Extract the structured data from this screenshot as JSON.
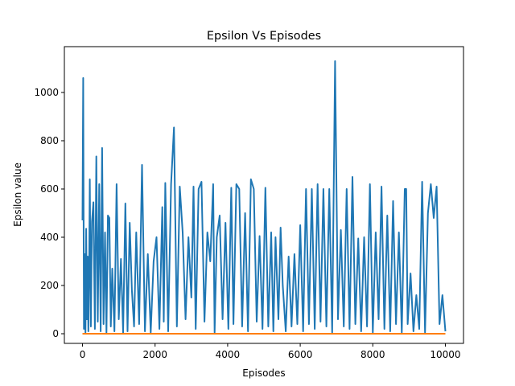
{
  "chart_data": {
    "type": "line",
    "title": "Epsilon Vs Episodes",
    "xlabel": "Episodes",
    "ylabel": "Epsilon value",
    "xlim": [
      -500,
      10500
    ],
    "ylim": [
      -40,
      1190
    ],
    "xticks": [
      0,
      2000,
      4000,
      6000,
      8000,
      10000
    ],
    "yticks": [
      0,
      200,
      400,
      600,
      800,
      1000
    ],
    "xtick_labels": [
      "0",
      "2000",
      "4000",
      "6000",
      "8000",
      "10000"
    ],
    "ytick_labels": [
      "0",
      "200",
      "400",
      "600",
      "800",
      "1000"
    ],
    "grid": false,
    "series": [
      {
        "color": "#1f77b4",
        "x": [
          0,
          20,
          40,
          60,
          80,
          100,
          120,
          140,
          160,
          180,
          200,
          230,
          260,
          300,
          340,
          380,
          420,
          460,
          500,
          540,
          580,
          620,
          660,
          700,
          740,
          780,
          820,
          880,
          940,
          1000,
          1060,
          1120,
          1180,
          1240,
          1300,
          1360,
          1420,
          1480,
          1560,
          1640,
          1720,
          1800,
          1880,
          1960,
          2040,
          2120,
          2200,
          2240,
          2280,
          2360,
          2440,
          2520,
          2600,
          2680,
          2760,
          2840,
          2920,
          3000,
          3060,
          3120,
          3200,
          3280,
          3360,
          3440,
          3520,
          3600,
          3640,
          3700,
          3780,
          3860,
          3940,
          4020,
          4100,
          4160,
          4240,
          4320,
          4400,
          4480,
          4560,
          4640,
          4720,
          4800,
          4880,
          4960,
          5040,
          5120,
          5200,
          5260,
          5320,
          5400,
          5460,
          5520,
          5600,
          5680,
          5760,
          5840,
          5920,
          6000,
          6080,
          6160,
          6240,
          6320,
          6400,
          6480,
          6560,
          6640,
          6720,
          6800,
          6880,
          6960,
          7040,
          7120,
          7200,
          7280,
          7360,
          7440,
          7520,
          7600,
          7680,
          7760,
          7840,
          7920,
          8000,
          8080,
          8160,
          8240,
          8320,
          8400,
          8480,
          8560,
          8640,
          8720,
          8800,
          8880,
          8920,
          8960,
          9040,
          9120,
          9200,
          9280,
          9360,
          9440,
          9520,
          9600,
          9680,
          9760,
          9840,
          9920,
          10000
        ],
        "y": [
          470,
          1060,
          20,
          330,
          5,
          435,
          60,
          320,
          10,
          230,
          640,
          30,
          465,
          545,
          20,
          735,
          50,
          620,
          10,
          770,
          40,
          420,
          5,
          490,
          480,
          30,
          270,
          10,
          620,
          60,
          310,
          5,
          540,
          10,
          460,
          180,
          30,
          420,
          40,
          700,
          10,
          330,
          5,
          300,
          400,
          20,
          525,
          50,
          625,
          10,
          620,
          855,
          30,
          610,
          420,
          60,
          400,
          150,
          610,
          20,
          600,
          630,
          50,
          420,
          300,
          620,
          5,
          400,
          490,
          60,
          460,
          20,
          605,
          40,
          620,
          600,
          30,
          500,
          10,
          640,
          600,
          50,
          405,
          20,
          605,
          30,
          420,
          10,
          400,
          60,
          440,
          200,
          10,
          320,
          30,
          330,
          40,
          450,
          10,
          600,
          40,
          600,
          20,
          620,
          50,
          600,
          30,
          600,
          5,
          1130,
          60,
          430,
          30,
          600,
          20,
          650,
          40,
          395,
          10,
          400,
          30,
          620,
          5,
          420,
          60,
          610,
          20,
          490,
          10,
          550,
          40,
          420,
          5,
          600,
          600,
          40,
          250,
          10,
          160,
          20,
          630,
          5,
          500,
          620,
          480,
          610,
          40,
          160,
          10
        ]
      },
      {
        "color": "#ff7f0e",
        "x": [
          0,
          10000
        ],
        "y": [
          0,
          0
        ]
      }
    ]
  }
}
